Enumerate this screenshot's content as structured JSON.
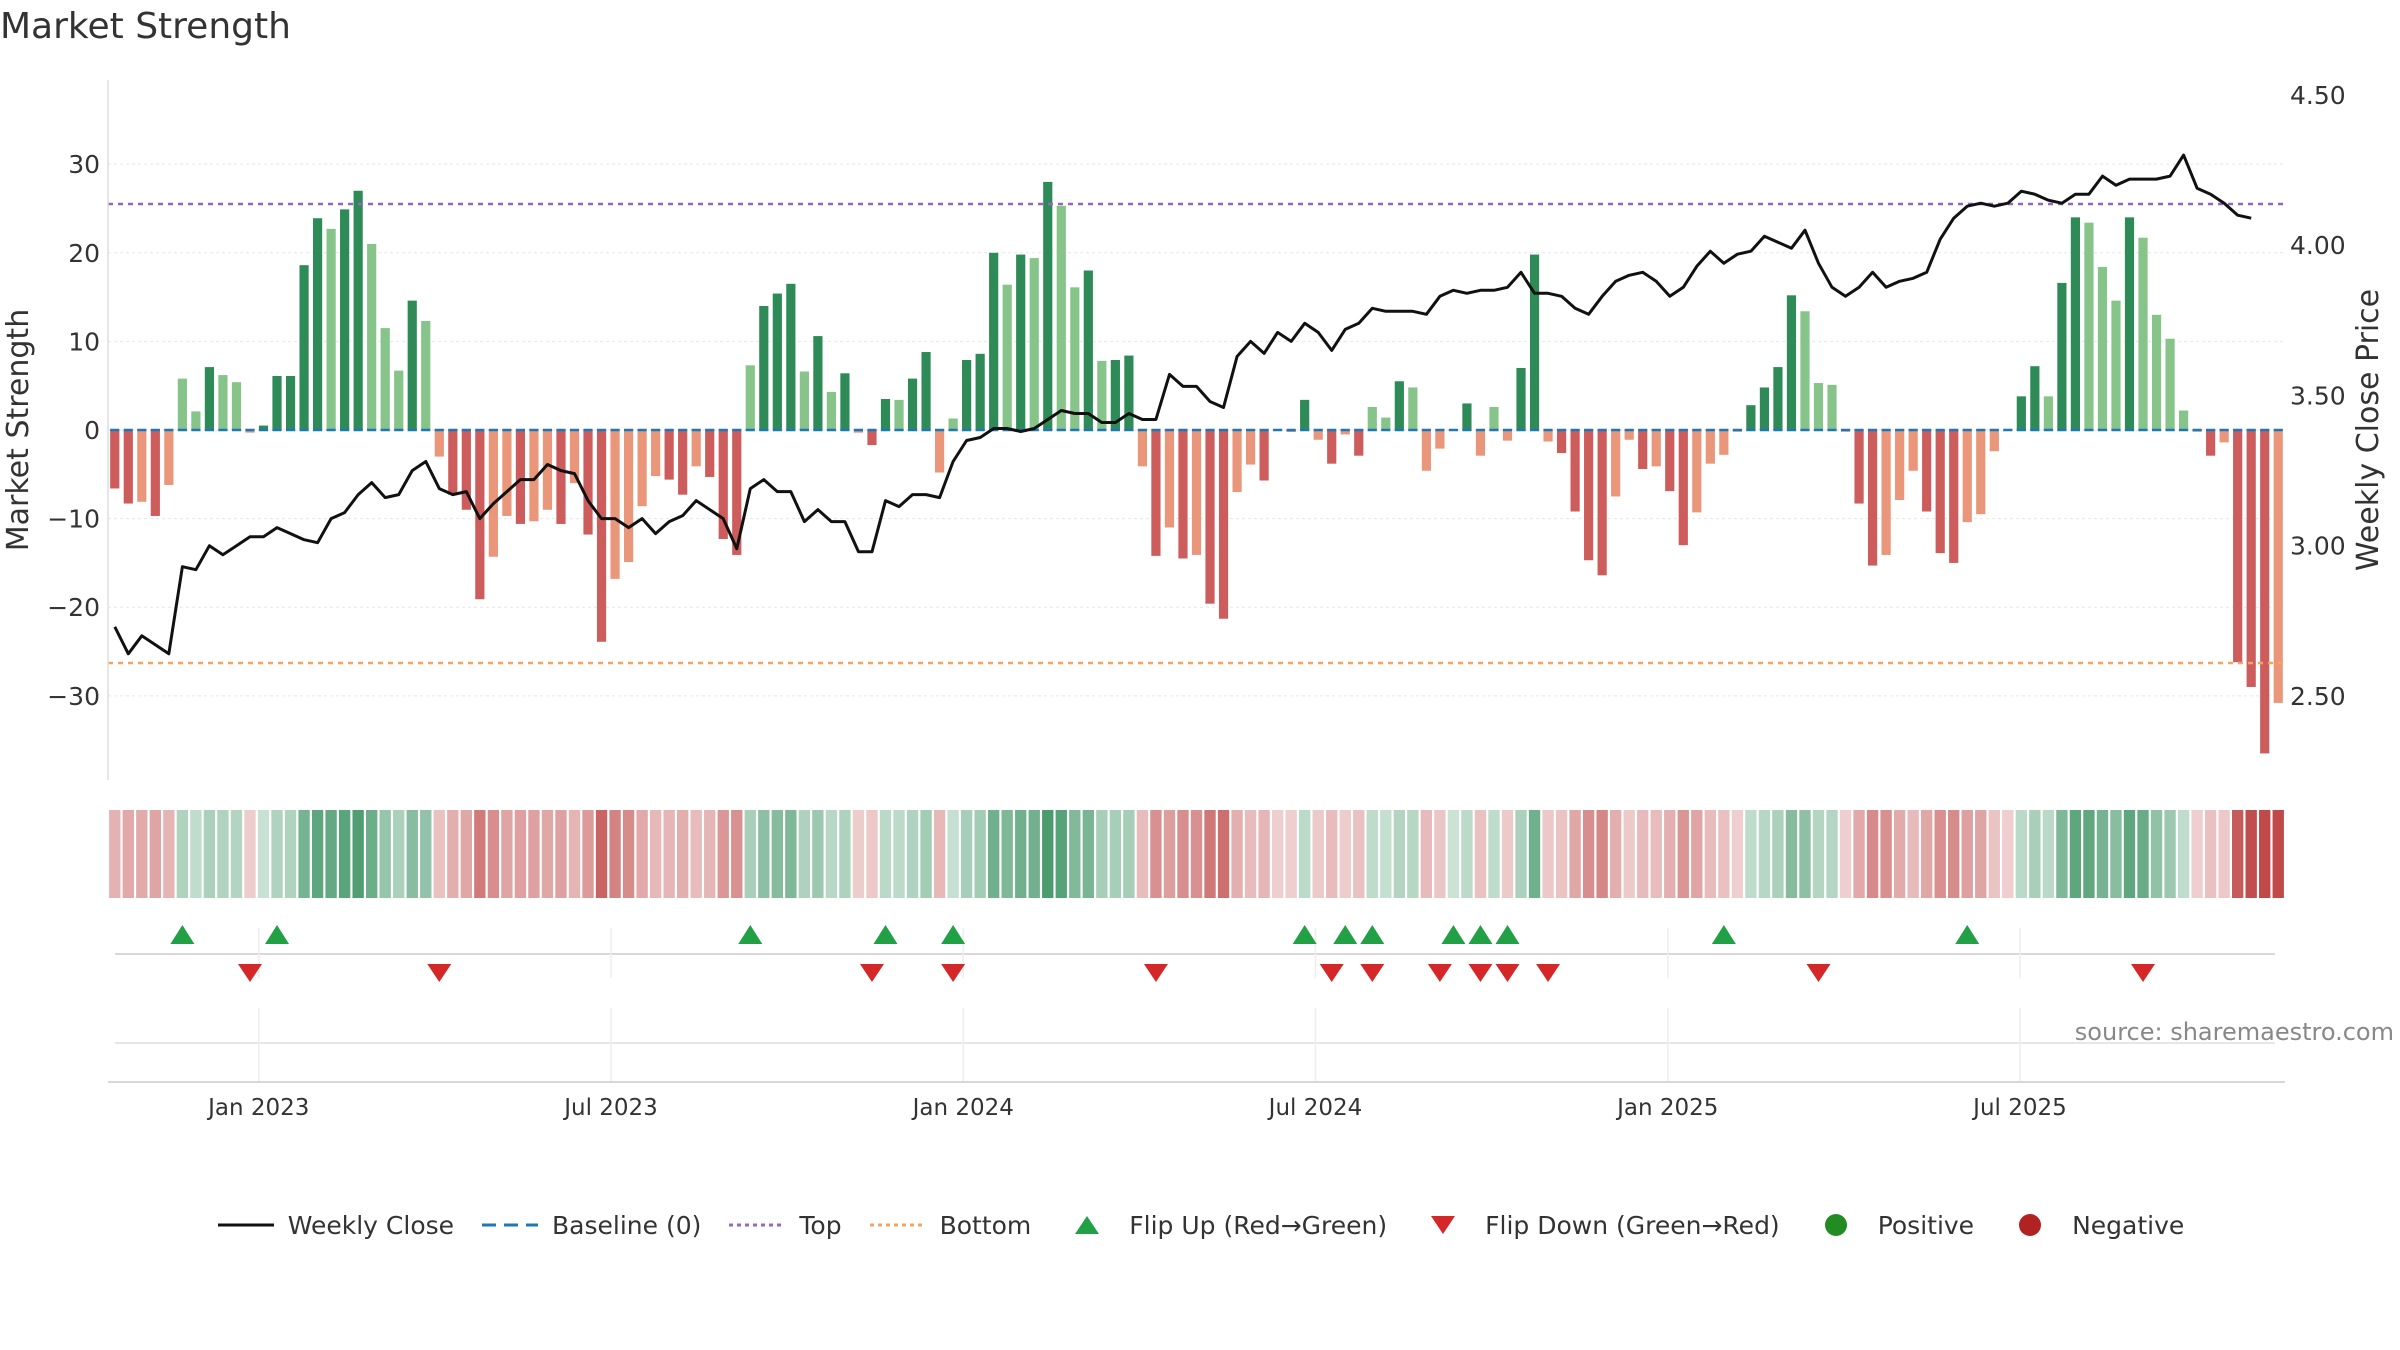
{
  "title": "Market Strength",
  "source": "source: sharemaestro.com",
  "legend": [
    {
      "label": "Weekly Close",
      "kind": "line",
      "color": "#111111"
    },
    {
      "label": "Baseline (0)",
      "kind": "dash",
      "color": "#1f77b4"
    },
    {
      "label": "Top",
      "kind": "dot",
      "color": "#9467bd"
    },
    {
      "label": "Bottom",
      "kind": "dot",
      "color": "#f4a460"
    },
    {
      "label": "Flip Up (Red→Green)",
      "kind": "tri-up",
      "color": "#22a045"
    },
    {
      "label": "Flip Down (Green→Red)",
      "kind": "tri-down",
      "color": "#d62728"
    },
    {
      "label": "Positive",
      "kind": "circle",
      "color": "#228b22"
    },
    {
      "label": "Negative",
      "kind": "circle",
      "color": "#b22222"
    }
  ],
  "chart_data": {
    "type": "bar",
    "ylabel": "Market Strength",
    "y2label": "Weekly Close Price",
    "ylim": [
      -39.5,
      39.5
    ],
    "y2lim": [
      2.22,
      4.55
    ],
    "yticks": [
      -30,
      -20,
      -10,
      0,
      10,
      20,
      30
    ],
    "y2ticks": [
      2.5,
      3.0,
      3.5,
      4.0,
      4.5
    ],
    "xticks": [
      "Jan 2023",
      "Jul 2023",
      "Jan 2024",
      "Jul 2024",
      "Jan 2025",
      "Jul 2025"
    ],
    "top_line": 25.5,
    "bottom_line": -26.3,
    "baseline": 0,
    "strength": [
      -6.6,
      -8.3,
      -8.1,
      -9.7,
      -6.2,
      5.8,
      2.1,
      7.1,
      6.2,
      5.4,
      -0.3,
      0.5,
      6.1,
      6.1,
      18.6,
      23.9,
      22.7,
      24.9,
      27.0,
      21.0,
      11.5,
      6.7,
      14.6,
      12.3,
      -3.0,
      -7.3,
      -9.0,
      -19.1,
      -14.3,
      -9.7,
      -10.6,
      -10.3,
      -9.0,
      -10.6,
      -6.0,
      -11.8,
      -23.9,
      -16.8,
      -14.9,
      -8.6,
      -5.2,
      -5.6,
      -7.3,
      -4.1,
      -5.3,
      -12.3,
      -14.1,
      7.3,
      14.0,
      15.4,
      16.5,
      6.6,
      10.6,
      4.3,
      6.4,
      -0.3,
      -1.7,
      3.5,
      3.4,
      5.8,
      8.8,
      -4.8,
      1.3,
      7.9,
      8.6,
      20.0,
      16.4,
      19.8,
      19.4,
      28.0,
      25.3,
      16.1,
      18.0,
      7.8,
      7.9,
      8.4,
      -4.1,
      -14.2,
      -11.0,
      -14.5,
      -14.1,
      -19.6,
      -21.3,
      -7.0,
      -3.9,
      -5.7,
      0,
      -0.2,
      3.4,
      -1.1,
      -3.8,
      -0.5,
      -2.9,
      2.6,
      1.4,
      5.5,
      4.8,
      -4.6,
      -2.1,
      0.1,
      3.0,
      -2.9,
      2.6,
      -1.2,
      7.0,
      19.8,
      -1.3,
      -2.6,
      -9.2,
      -14.7,
      -16.4,
      -7.5,
      -1.1,
      -4.4,
      -4.1,
      -6.9,
      -13.0,
      -9.3,
      -3.8,
      -2.8,
      -0.2,
      2.8,
      4.8,
      7.1,
      15.2,
      13.4,
      5.3,
      5.1,
      -0.2,
      -8.3,
      -15.3,
      -14.1,
      -7.9,
      -4.6,
      -9.2,
      -13.9,
      -15.0,
      -10.4,
      -9.5,
      -2.4,
      0,
      3.8,
      7.2,
      3.8,
      16.6,
      24.0,
      23.4,
      18.4,
      14.6,
      24.0,
      21.7,
      13.0,
      10.3,
      2.2,
      -0.2,
      -2.9,
      -1.4,
      -26.2,
      -29.0,
      -36.5,
      -30.8
    ],
    "close": [
      2.73,
      2.64,
      2.7,
      2.67,
      2.64,
      2.93,
      2.92,
      3.0,
      2.97,
      3.0,
      3.03,
      3.03,
      3.06,
      3.04,
      3.02,
      3.01,
      3.09,
      3.11,
      3.17,
      3.21,
      3.16,
      3.17,
      3.25,
      3.28,
      3.19,
      3.17,
      3.18,
      3.09,
      3.14,
      3.18,
      3.22,
      3.22,
      3.27,
      3.25,
      3.24,
      3.15,
      3.09,
      3.09,
      3.06,
      3.09,
      3.04,
      3.08,
      3.1,
      3.15,
      3.12,
      3.09,
      2.99,
      3.19,
      3.22,
      3.18,
      3.18,
      3.08,
      3.12,
      3.08,
      3.08,
      2.98,
      2.98,
      3.15,
      3.13,
      3.17,
      3.17,
      3.16,
      3.28,
      3.35,
      3.36,
      3.39,
      3.39,
      3.38,
      3.39,
      3.42,
      3.45,
      3.44,
      3.44,
      3.41,
      3.41,
      3.44,
      3.42,
      3.42,
      3.57,
      3.53,
      3.53,
      3.48,
      3.46,
      3.63,
      3.68,
      3.64,
      3.71,
      3.68,
      3.74,
      3.71,
      3.65,
      3.72,
      3.74,
      3.79,
      3.78,
      3.78,
      3.78,
      3.77,
      3.83,
      3.85,
      3.84,
      3.85,
      3.85,
      3.86,
      3.91,
      3.84,
      3.84,
      3.83,
      3.79,
      3.77,
      3.83,
      3.88,
      3.9,
      3.91,
      3.88,
      3.83,
      3.86,
      3.93,
      3.98,
      3.94,
      3.97,
      3.98,
      4.03,
      4.01,
      3.99,
      4.05,
      3.94,
      3.86,
      3.83,
      3.86,
      3.91,
      3.86,
      3.88,
      3.89,
      3.91,
      4.02,
      4.09,
      4.13,
      4.14,
      4.13,
      4.14,
      4.18,
      4.17,
      4.15,
      4.14,
      4.17,
      4.17,
      4.23,
      4.2,
      4.22,
      4.22,
      4.22,
      4.23,
      4.3,
      4.19,
      4.17,
      4.14,
      4.1,
      4.09
    ],
    "flip_up": [
      5,
      12,
      47,
      57,
      62,
      88,
      91,
      93,
      99,
      101,
      103,
      119,
      137
    ],
    "flip_down": [
      10,
      24,
      56,
      62,
      77,
      90,
      93,
      98,
      101,
      103,
      106,
      126,
      150
    ]
  }
}
